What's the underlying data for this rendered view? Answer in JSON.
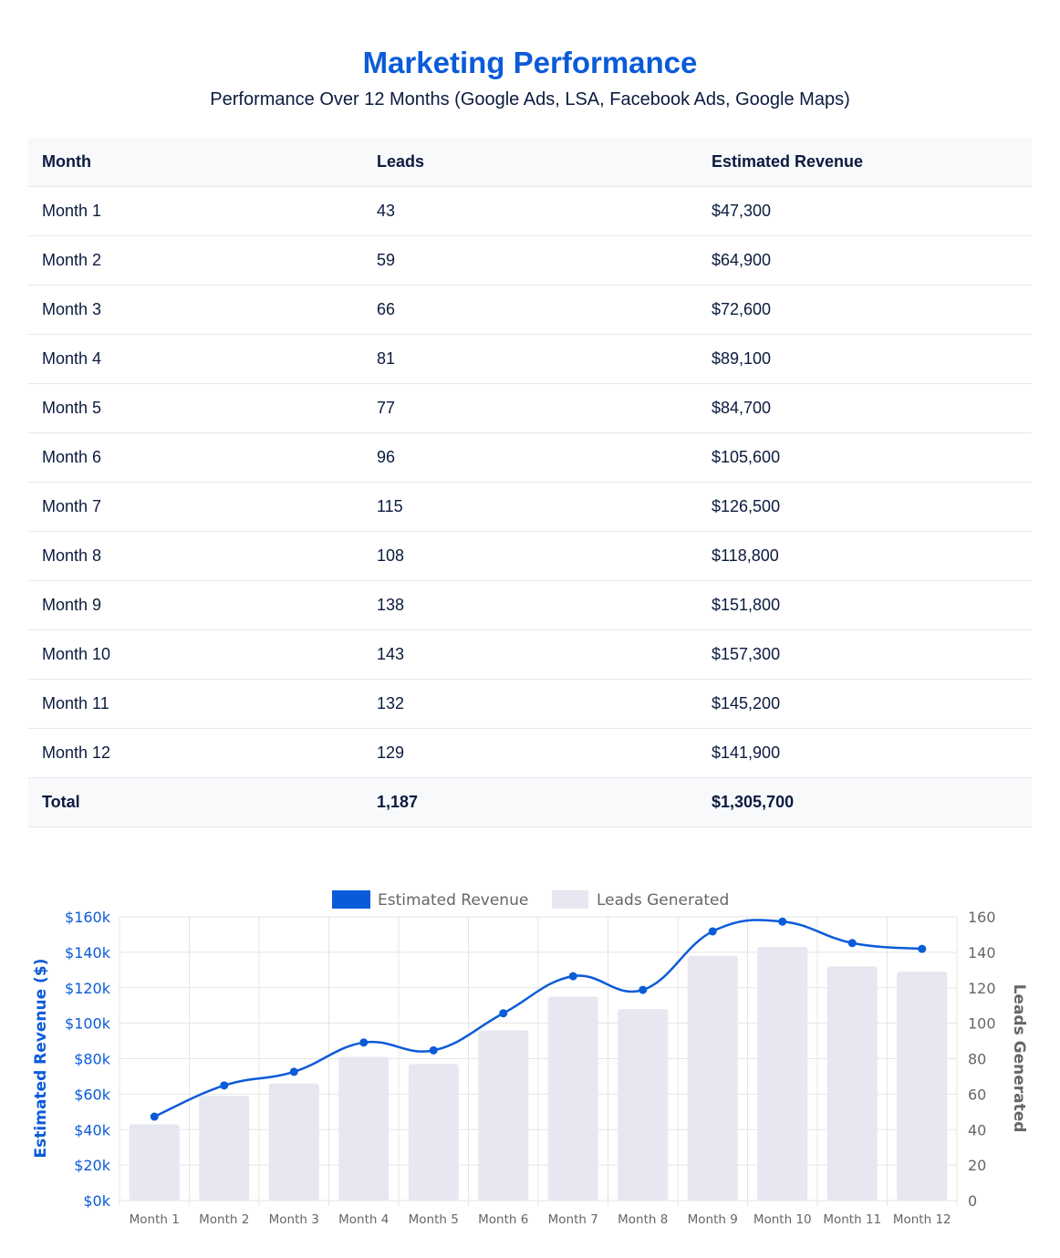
{
  "header": {
    "title": "Marketing Performance",
    "subtitle": "Performance Over 12 Months (Google Ads, LSA, Facebook Ads, Google Maps)"
  },
  "table": {
    "columns": [
      "Month",
      "Leads",
      "Estimated Revenue"
    ],
    "rows": [
      [
        "Month 1",
        "43",
        "$47,300"
      ],
      [
        "Month 2",
        "59",
        "$64,900"
      ],
      [
        "Month 3",
        "66",
        "$72,600"
      ],
      [
        "Month 4",
        "81",
        "$89,100"
      ],
      [
        "Month 5",
        "77",
        "$84,700"
      ],
      [
        "Month 6",
        "96",
        "$105,600"
      ],
      [
        "Month 7",
        "115",
        "$126,500"
      ],
      [
        "Month 8",
        "108",
        "$118,800"
      ],
      [
        "Month 9",
        "138",
        "$151,800"
      ],
      [
        "Month 10",
        "143",
        "$157,300"
      ],
      [
        "Month 11",
        "132",
        "$145,200"
      ],
      [
        "Month 12",
        "129",
        "$141,900"
      ]
    ],
    "total": [
      "Total",
      "1,187",
      "$1,305,700"
    ]
  },
  "colors": {
    "revenue": "#0b5bd9",
    "leads_bar": "#e6e7f1",
    "grid": "#e5e5e5",
    "right_axis": "#666666"
  },
  "chart_data": {
    "type": "bar",
    "categories": [
      "Month 1",
      "Month 2",
      "Month 3",
      "Month 4",
      "Month 5",
      "Month 6",
      "Month 7",
      "Month 8",
      "Month 9",
      "Month 10",
      "Month 11",
      "Month 12"
    ],
    "series": [
      {
        "name": "Estimated Revenue",
        "type": "line",
        "axis": "left",
        "values": [
          47300,
          64900,
          72600,
          89100,
          84700,
          105600,
          126500,
          118800,
          151800,
          157300,
          145200,
          141900
        ]
      },
      {
        "name": "Leads Generated",
        "type": "bar",
        "axis": "right",
        "values": [
          43,
          59,
          66,
          81,
          77,
          96,
          115,
          108,
          138,
          143,
          132,
          129
        ]
      }
    ],
    "ylabel": "Estimated Revenue ($)",
    "ylabel_right": "Leads Generated",
    "ylim": [
      0,
      160000
    ],
    "ylim_right": [
      0,
      160
    ],
    "yticks": [
      "$0k",
      "$20k",
      "$40k",
      "$60k",
      "$80k",
      "$100k",
      "$120k",
      "$140k",
      "$160k"
    ],
    "yticks_right": [
      "0",
      "20",
      "40",
      "60",
      "80",
      "100",
      "120",
      "140",
      "160"
    ],
    "legend": "top-center",
    "grid": true
  }
}
